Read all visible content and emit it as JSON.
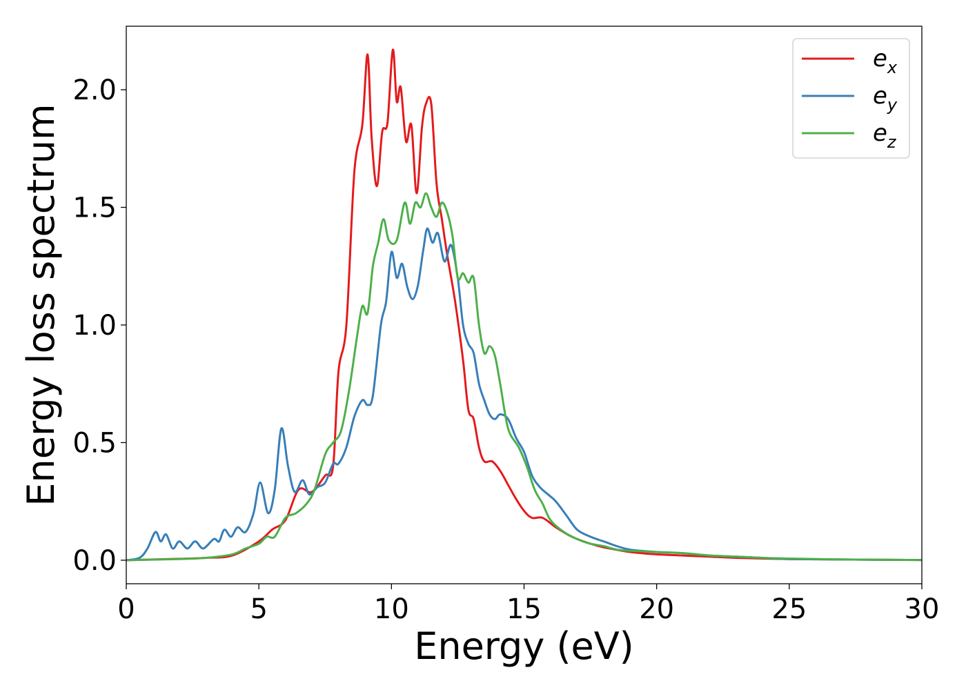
{
  "chart_data": {
    "type": "line",
    "title": "",
    "xlabel": "Energy (eV)",
    "ylabel": "Energy loss spectrum",
    "xlim": [
      0,
      30
    ],
    "ylim": [
      -0.1,
      2.27
    ],
    "xticks": [
      0,
      5,
      10,
      15,
      20,
      25,
      30
    ],
    "yticks": [
      0.0,
      0.5,
      1.0,
      1.5,
      2.0
    ],
    "xtick_labels": [
      "0",
      "5",
      "10",
      "15",
      "20",
      "25",
      "30"
    ],
    "ytick_labels": [
      "0.0",
      "0.5",
      "1.0",
      "1.5",
      "2.0"
    ],
    "grid": false,
    "legend_position": "top-right",
    "series": [
      {
        "name": "e",
        "subscript": "x",
        "color": "#e41a1c",
        "points": [
          [
            0,
            0
          ],
          [
            1,
            0.003
          ],
          [
            2,
            0.006
          ],
          [
            3,
            0.01
          ],
          [
            4,
            0.02
          ],
          [
            5,
            0.08
          ],
          [
            5.5,
            0.13
          ],
          [
            6,
            0.17
          ],
          [
            6.5,
            0.3
          ],
          [
            7,
            0.29
          ],
          [
            7.5,
            0.36
          ],
          [
            7.8,
            0.4
          ],
          [
            8,
            0.8
          ],
          [
            8.3,
            1.0
          ],
          [
            8.6,
            1.65
          ],
          [
            8.9,
            1.85
          ],
          [
            9.1,
            2.15
          ],
          [
            9.25,
            1.8
          ],
          [
            9.45,
            1.59
          ],
          [
            9.65,
            1.82
          ],
          [
            9.85,
            1.86
          ],
          [
            10.05,
            2.17
          ],
          [
            10.2,
            1.95
          ],
          [
            10.35,
            2.01
          ],
          [
            10.55,
            1.78
          ],
          [
            10.75,
            1.85
          ],
          [
            10.95,
            1.56
          ],
          [
            11.15,
            1.84
          ],
          [
            11.3,
            1.94
          ],
          [
            11.5,
            1.94
          ],
          [
            11.7,
            1.6
          ],
          [
            11.9,
            1.45
          ],
          [
            12.1,
            1.3
          ],
          [
            12.4,
            1.1
          ],
          [
            12.7,
            0.85
          ],
          [
            12.9,
            0.64
          ],
          [
            13.1,
            0.6
          ],
          [
            13.3,
            0.48
          ],
          [
            13.5,
            0.42
          ],
          [
            13.8,
            0.42
          ],
          [
            14.1,
            0.38
          ],
          [
            14.4,
            0.32
          ],
          [
            14.7,
            0.26
          ],
          [
            15,
            0.21
          ],
          [
            15.3,
            0.18
          ],
          [
            15.7,
            0.18
          ],
          [
            16.2,
            0.14
          ],
          [
            16.8,
            0.1
          ],
          [
            17.5,
            0.07
          ],
          [
            18,
            0.055
          ],
          [
            19,
            0.035
          ],
          [
            20,
            0.025
          ],
          [
            21,
            0.02
          ],
          [
            22,
            0.015
          ],
          [
            23,
            0.01
          ],
          [
            25,
            0.005
          ],
          [
            27,
            0.003
          ],
          [
            30,
            0.001
          ]
        ]
      },
      {
        "name": "e",
        "subscript": "y",
        "color": "#377eb8",
        "points": [
          [
            0,
            0
          ],
          [
            0.5,
            0.01
          ],
          [
            0.8,
            0.05
          ],
          [
            1.1,
            0.12
          ],
          [
            1.3,
            0.08
          ],
          [
            1.5,
            0.11
          ],
          [
            1.75,
            0.05
          ],
          [
            2,
            0.08
          ],
          [
            2.3,
            0.05
          ],
          [
            2.6,
            0.08
          ],
          [
            2.9,
            0.05
          ],
          [
            3.3,
            0.09
          ],
          [
            3.5,
            0.08
          ],
          [
            3.7,
            0.13
          ],
          [
            3.95,
            0.1
          ],
          [
            4.2,
            0.14
          ],
          [
            4.5,
            0.12
          ],
          [
            4.8,
            0.2
          ],
          [
            5.05,
            0.33
          ],
          [
            5.35,
            0.2
          ],
          [
            5.6,
            0.3
          ],
          [
            5.85,
            0.56
          ],
          [
            6.1,
            0.4
          ],
          [
            6.35,
            0.29
          ],
          [
            6.65,
            0.34
          ],
          [
            6.9,
            0.28
          ],
          [
            7.2,
            0.31
          ],
          [
            7.5,
            0.33
          ],
          [
            7.8,
            0.41
          ],
          [
            8,
            0.41
          ],
          [
            8.3,
            0.48
          ],
          [
            8.6,
            0.61
          ],
          [
            8.9,
            0.68
          ],
          [
            9.1,
            0.66
          ],
          [
            9.3,
            0.7
          ],
          [
            9.6,
            1.0
          ],
          [
            9.8,
            1.1
          ],
          [
            10.0,
            1.31
          ],
          [
            10.2,
            1.2
          ],
          [
            10.4,
            1.26
          ],
          [
            10.6,
            1.16
          ],
          [
            10.8,
            1.11
          ],
          [
            11.0,
            1.17
          ],
          [
            11.2,
            1.32
          ],
          [
            11.35,
            1.41
          ],
          [
            11.55,
            1.35
          ],
          [
            11.75,
            1.39
          ],
          [
            12.0,
            1.27
          ],
          [
            12.25,
            1.34
          ],
          [
            12.5,
            1.2
          ],
          [
            12.7,
            1.0
          ],
          [
            12.9,
            0.92
          ],
          [
            13.1,
            0.88
          ],
          [
            13.3,
            0.75
          ],
          [
            13.5,
            0.68
          ],
          [
            13.7,
            0.62
          ],
          [
            13.9,
            0.6
          ],
          [
            14.1,
            0.62
          ],
          [
            14.4,
            0.6
          ],
          [
            14.7,
            0.52
          ],
          [
            15,
            0.46
          ],
          [
            15.3,
            0.36
          ],
          [
            15.6,
            0.31
          ],
          [
            15.9,
            0.28
          ],
          [
            16.2,
            0.25
          ],
          [
            16.6,
            0.19
          ],
          [
            17,
            0.13
          ],
          [
            17.5,
            0.1
          ],
          [
            18,
            0.08
          ],
          [
            18.5,
            0.06
          ],
          [
            19,
            0.045
          ],
          [
            20,
            0.035
          ],
          [
            21,
            0.03
          ],
          [
            22,
            0.02
          ],
          [
            23,
            0.015
          ],
          [
            24,
            0.01
          ],
          [
            25,
            0.005
          ],
          [
            27,
            0.003
          ],
          [
            30,
            0.001
          ]
        ]
      },
      {
        "name": "e",
        "subscript": "z",
        "color": "#4daf4a",
        "points": [
          [
            0,
            0
          ],
          [
            2,
            0.005
          ],
          [
            3,
            0.01
          ],
          [
            4,
            0.025
          ],
          [
            4.5,
            0.05
          ],
          [
            5,
            0.07
          ],
          [
            5.3,
            0.1
          ],
          [
            5.6,
            0.1
          ],
          [
            6,
            0.18
          ],
          [
            6.4,
            0.2
          ],
          [
            6.8,
            0.24
          ],
          [
            7.1,
            0.3
          ],
          [
            7.5,
            0.45
          ],
          [
            7.8,
            0.5
          ],
          [
            8.1,
            0.55
          ],
          [
            8.4,
            0.72
          ],
          [
            8.7,
            0.95
          ],
          [
            8.9,
            1.08
          ],
          [
            9.1,
            1.05
          ],
          [
            9.3,
            1.25
          ],
          [
            9.5,
            1.35
          ],
          [
            9.7,
            1.45
          ],
          [
            9.9,
            1.36
          ],
          [
            10.2,
            1.36
          ],
          [
            10.5,
            1.52
          ],
          [
            10.7,
            1.43
          ],
          [
            10.9,
            1.52
          ],
          [
            11.1,
            1.5
          ],
          [
            11.3,
            1.56
          ],
          [
            11.5,
            1.5
          ],
          [
            11.7,
            1.46
          ],
          [
            11.9,
            1.52
          ],
          [
            12.1,
            1.48
          ],
          [
            12.3,
            1.38
          ],
          [
            12.5,
            1.2
          ],
          [
            12.7,
            1.22
          ],
          [
            12.9,
            1.18
          ],
          [
            13.1,
            1.2
          ],
          [
            13.3,
            1.0
          ],
          [
            13.5,
            0.88
          ],
          [
            13.7,
            0.91
          ],
          [
            13.9,
            0.87
          ],
          [
            14.1,
            0.75
          ],
          [
            14.4,
            0.56
          ],
          [
            14.8,
            0.48
          ],
          [
            15.1,
            0.4
          ],
          [
            15.4,
            0.3
          ],
          [
            15.7,
            0.24
          ],
          [
            16,
            0.17
          ],
          [
            16.5,
            0.12
          ],
          [
            17,
            0.09
          ],
          [
            17.5,
            0.07
          ],
          [
            18,
            0.06
          ],
          [
            18.5,
            0.045
          ],
          [
            19,
            0.04
          ],
          [
            20,
            0.035
          ],
          [
            21,
            0.03
          ],
          [
            22,
            0.02
          ],
          [
            23,
            0.015
          ],
          [
            24,
            0.01
          ],
          [
            25,
            0.007
          ],
          [
            27,
            0.003
          ],
          [
            30,
            0.001
          ]
        ]
      }
    ]
  }
}
